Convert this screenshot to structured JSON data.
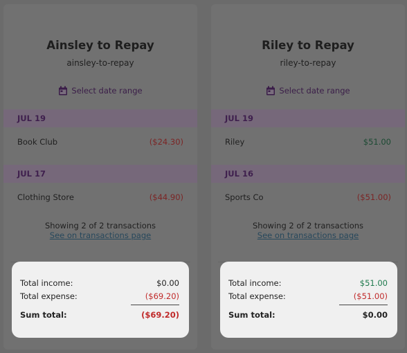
{
  "accounts": [
    {
      "title": "Ainsley to Repay",
      "slug": "ainsley-to-repay",
      "date_range_label": "Select date range",
      "groups": [
        {
          "date": "JUL 19",
          "name": "Book Club",
          "amount": "($24.30)"
        },
        {
          "date": "JUL 17",
          "name": "Clothing Store",
          "amount": "($44.90)"
        }
      ],
      "showing_text": "Showing 2 of 2 transactions",
      "link_text": "See on transactions page",
      "summary": {
        "income_label": "Total income:",
        "income_value": "$0.00",
        "expense_label": "Total expense:",
        "expense_value": "($69.20)",
        "sum_label": "Sum total:",
        "sum_value": "($69.20)"
      }
    },
    {
      "title": "Riley to Repay",
      "slug": "riley-to-repay",
      "date_range_label": "Select date range",
      "groups": [
        {
          "date": "JUL 19",
          "name": "Riley",
          "amount": "$51.00"
        },
        {
          "date": "JUL 16",
          "name": "Sports Co",
          "amount": "($51.00)"
        }
      ],
      "showing_text": "Showing 2 of 2 transactions",
      "link_text": "See on transactions page",
      "summary": {
        "income_label": "Total income:",
        "income_value": "$51.00",
        "expense_label": "Total expense:",
        "expense_value": "($51.00)",
        "sum_label": "Sum total:",
        "sum_value": "$0.00"
      }
    }
  ],
  "colors": {
    "overlay": "#6b6b6b",
    "negative": "#c02a2a",
    "positive": "#1f7a4d",
    "accent": "#3e1f4d"
  },
  "icons": {
    "date_range": "calendar-icon"
  }
}
